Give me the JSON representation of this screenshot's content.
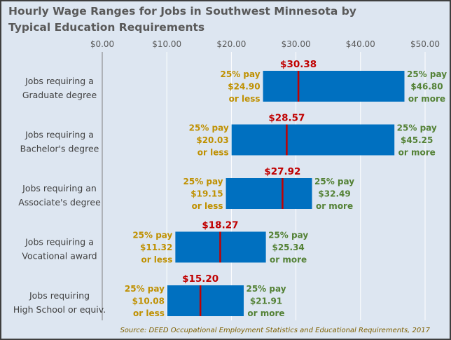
{
  "title_line1": "Hourly Wage Ranges for Jobs in Southwest Minnesota by",
  "title_line2": "Typical Education Requirements",
  "source": "Source: DEED Occupational Employment Statistics and Educational Requirements, 2017",
  "colors": {
    "bar": "#0070c0",
    "median": "#c00000",
    "low_label": "#bf9000",
    "high_label": "#538135",
    "category": "#404040",
    "axis": "#595959",
    "background": "#dde6f1",
    "gridline": "#ffffff"
  },
  "chart_data": {
    "type": "bar",
    "orientation": "horizontal-range",
    "xlim": [
      0,
      50
    ],
    "ticks": [
      "$0.00",
      "$10.00",
      "$20.00",
      "$30.00",
      "$40.00",
      "$50.00"
    ],
    "tick_values": [
      0,
      10,
      20,
      30,
      40,
      50
    ],
    "grid": true,
    "series": [
      {
        "label_lines": [
          "Jobs requiring a",
          "Graduate degree"
        ],
        "low": 24.9,
        "median": 30.38,
        "high": 46.8,
        "median_label": "$30.38",
        "low_label_lines": [
          "25% pay",
          "$24.90",
          "or less"
        ],
        "high_label_lines": [
          "25% pay",
          "$46.80",
          "or more"
        ]
      },
      {
        "label_lines": [
          "Jobs requiring a",
          "Bachelor's degree"
        ],
        "low": 20.03,
        "median": 28.57,
        "high": 45.25,
        "median_label": "$28.57",
        "low_label_lines": [
          "25% pay",
          "$20.03",
          "or less"
        ],
        "high_label_lines": [
          "25% pay",
          "$45.25",
          "or more"
        ]
      },
      {
        "label_lines": [
          "Jobs requiring an",
          "Associate's degree"
        ],
        "low": 19.15,
        "median": 27.92,
        "high": 32.49,
        "median_label": "$27.92",
        "low_label_lines": [
          "25% pay",
          "$19.15",
          "or less"
        ],
        "high_label_lines": [
          "25% pay",
          "$32.49",
          "or more"
        ]
      },
      {
        "label_lines": [
          "Jobs requiring a",
          "Vocational award"
        ],
        "low": 11.32,
        "median": 18.27,
        "high": 25.34,
        "median_label": "$18.27",
        "low_label_lines": [
          "25% pay",
          "$11.32",
          "or less"
        ],
        "high_label_lines": [
          "25% pay",
          "$25.34",
          "or more"
        ]
      },
      {
        "label_lines": [
          "Jobs requiring",
          "High School or equiv."
        ],
        "low": 10.08,
        "median": 15.2,
        "high": 21.91,
        "median_label": "$15.20",
        "low_label_lines": [
          "25% pay",
          "$10.08",
          "or less"
        ],
        "high_label_lines": [
          "25% pay",
          "$21.91",
          "or more"
        ]
      }
    ]
  }
}
